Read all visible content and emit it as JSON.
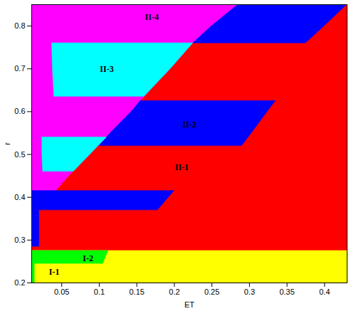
{
  "chart_data": {
    "type": "region",
    "xlabel": "ET",
    "ylabel": "r",
    "xlim": [
      0.01,
      0.43
    ],
    "ylim": [
      0.2,
      0.85
    ],
    "xticks": [
      0.05,
      0.1,
      0.15,
      0.2,
      0.25,
      0.3,
      0.35,
      0.4
    ],
    "yticks": [
      0.2,
      0.3,
      0.4,
      0.5,
      0.6,
      0.7,
      0.8
    ],
    "grid": false,
    "regions": [
      {
        "name": "II-1",
        "color": "#ff0000",
        "label_at": [
          0.21,
          0.47
        ],
        "parts": [
          [
            [
              0.275,
              0.01,
              0.43
            ],
            [
              0.85,
              0.01,
              0.43
            ]
          ]
        ]
      },
      {
        "name": "II-4",
        "color": "#ff00ff",
        "label_at": [
          0.17,
          0.82
        ],
        "parts": [
          [
            [
              0.35,
              0.01,
              0.01
            ],
            [
              0.4,
              0.01,
              0.035
            ],
            [
              0.45,
              0.01,
              0.06
            ],
            [
              0.5,
              0.01,
              0.088
            ],
            [
              0.55,
              0.01,
              0.115
            ],
            [
              0.6,
              0.01,
              0.143
            ],
            [
              0.65,
              0.01,
              0.168
            ],
            [
              0.7,
              0.01,
              0.195
            ],
            [
              0.76,
              0.01,
              0.225
            ],
            [
              0.8,
              0.01,
              0.25
            ],
            [
              0.85,
              0.01,
              0.285
            ]
          ]
        ]
      },
      {
        "name": "II-2",
        "color": "#0000ff",
        "label_at": [
          0.22,
          0.57
        ],
        "parts": [
          [
            [
              0.285,
              0.01,
              0.02
            ],
            [
              0.37,
              0.01,
              0.02
            ]
          ],
          [
            [
              0.37,
              0.01,
              0.178
            ],
            [
              0.415,
              0.01,
              0.2
            ]
          ],
          [
            [
              0.52,
              0.1,
              0.29
            ],
            [
              0.55,
              0.115,
              0.303
            ],
            [
              0.6,
              0.143,
              0.324
            ],
            [
              0.625,
              0.155,
              0.335
            ]
          ],
          [
            [
              0.76,
              0.225,
              0.375
            ],
            [
              0.8,
              0.25,
              0.4
            ],
            [
              0.85,
              0.285,
              0.43
            ]
          ]
        ]
      },
      {
        "name": "II-3",
        "color": "#00ffff",
        "label_at": [
          0.11,
          0.7
        ],
        "parts": [
          [
            [
              0.46,
              0.025,
              0.066
            ],
            [
              0.5,
              0.024,
              0.088
            ],
            [
              0.54,
              0.024,
              0.11
            ]
          ],
          [
            [
              0.635,
              0.04,
              0.16
            ],
            [
              0.7,
              0.038,
              0.195
            ],
            [
              0.76,
              0.037,
              0.225
            ]
          ]
        ]
      },
      {
        "name": "I-1",
        "color": "#ffff00",
        "label_at": [
          0.04,
          0.225
        ],
        "parts": [
          [
            [
              0.2,
              0.01,
              0.43
            ],
            [
              0.275,
              0.01,
              0.43
            ]
          ]
        ]
      },
      {
        "name": "I-2",
        "color": "#00ff00",
        "label_at": [
          0.085,
          0.257
        ],
        "parts": [
          [
            [
              0.2,
              0.01,
              0.014
            ],
            [
              0.245,
              0.01,
              0.014
            ]
          ],
          [
            [
              0.245,
              0.01,
              0.105
            ],
            [
              0.275,
              0.01,
              0.112
            ]
          ]
        ]
      }
    ]
  }
}
